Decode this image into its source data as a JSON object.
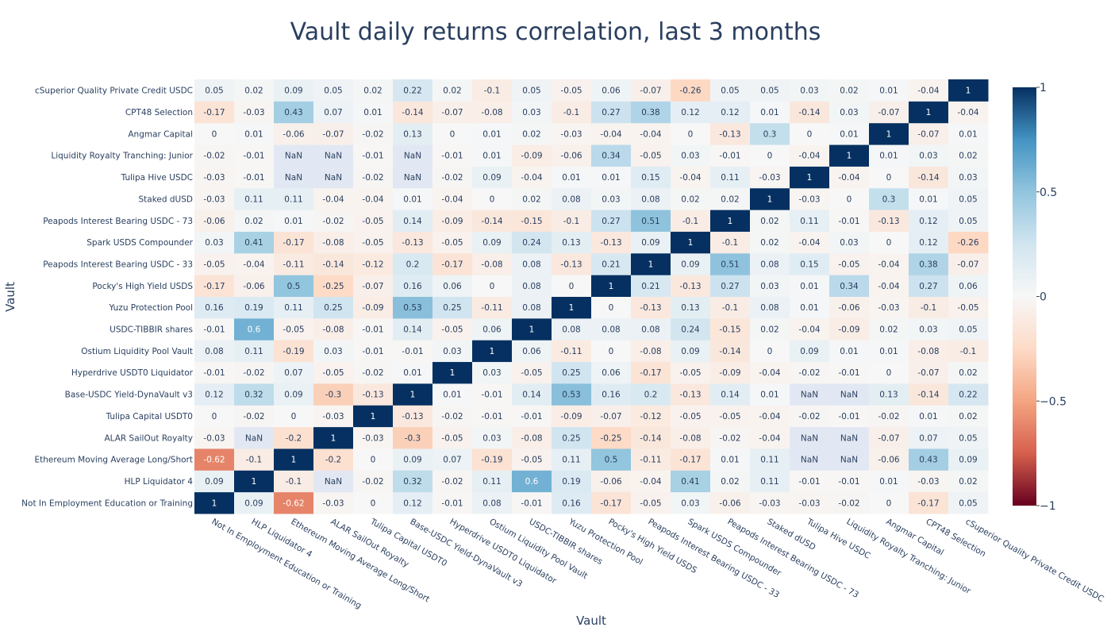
{
  "chart_data": {
    "type": "heatmap",
    "title": "Vault daily returns correlation, last 3 months",
    "xlabel": "Vault",
    "ylabel": "Vault",
    "categories": [
      "Not In Employment Education or Training",
      "HLP Liquidator 4",
      "Ethereum Moving Average Long/Short",
      "ALAR SailOut Royalty",
      "Tulipa Capital USDT0",
      "Base-USDC Yield-DynaVault v3",
      "Hyperdrive USDT0 Liquidator",
      "Ostium Liquidity Pool Vault",
      "USDC-TIBBIR shares",
      "Yuzu Protection Pool",
      "Pocky's High Yield USDS",
      "Peapods Interest Bearing USDC - 33",
      "Spark USDS Compounder",
      "Peapods Interest Bearing USDC - 73",
      "Staked dUSD",
      "Tulipa Hive USDC",
      "Liquidity Royalty Tranching: Junior",
      "Angmar Capital",
      "CPT48 Selection",
      "cSuperior Quality Private Credit USDC"
    ],
    "z": [
      [
        1,
        0.09,
        -0.62,
        -0.03,
        0,
        0.12,
        -0.01,
        0.08,
        -0.01,
        0.16,
        -0.17,
        -0.05,
        0.03,
        -0.06,
        -0.03,
        -0.03,
        -0.02,
        0,
        -0.17,
        0.05
      ],
      [
        0.09,
        1,
        -0.1,
        "NaN",
        -0.02,
        0.32,
        -0.02,
        0.11,
        0.6,
        0.19,
        -0.06,
        -0.04,
        0.41,
        0.02,
        0.11,
        -0.01,
        -0.01,
        0.01,
        -0.03,
        0.02
      ],
      [
        -0.62,
        -0.1,
        1,
        -0.2,
        0,
        0.09,
        0.07,
        -0.19,
        -0.05,
        0.11,
        0.5,
        -0.11,
        -0.17,
        0.01,
        0.11,
        "NaN",
        "NaN",
        -0.06,
        0.43,
        0.09
      ],
      [
        -0.03,
        "NaN",
        -0.2,
        1,
        -0.03,
        -0.3,
        -0.05,
        0.03,
        -0.08,
        0.25,
        -0.25,
        -0.14,
        -0.08,
        -0.02,
        -0.04,
        "NaN",
        "NaN",
        -0.07,
        0.07,
        0.05
      ],
      [
        0,
        -0.02,
        0,
        -0.03,
        1,
        -0.13,
        -0.02,
        -0.01,
        -0.01,
        -0.09,
        -0.07,
        -0.12,
        -0.05,
        -0.05,
        -0.04,
        -0.02,
        -0.01,
        -0.02,
        0.01,
        0.02
      ],
      [
        0.12,
        0.32,
        0.09,
        -0.3,
        -0.13,
        1,
        0.01,
        -0.01,
        0.14,
        0.53,
        0.16,
        0.2,
        -0.13,
        0.14,
        0.01,
        "NaN",
        "NaN",
        0.13,
        -0.14,
        0.22
      ],
      [
        -0.01,
        -0.02,
        0.07,
        -0.05,
        -0.02,
        0.01,
        1,
        0.03,
        -0.05,
        0.25,
        0.06,
        -0.17,
        -0.05,
        -0.09,
        -0.04,
        -0.02,
        -0.01,
        0,
        -0.07,
        0.02
      ],
      [
        0.08,
        0.11,
        -0.19,
        0.03,
        -0.01,
        -0.01,
        0.03,
        1,
        0.06,
        -0.11,
        0,
        -0.08,
        0.09,
        -0.14,
        0,
        0.09,
        0.01,
        0.01,
        -0.08,
        -0.1
      ],
      [
        -0.01,
        0.6,
        -0.05,
        -0.08,
        -0.01,
        0.14,
        -0.05,
        0.06,
        1,
        0.08,
        0.08,
        0.08,
        0.24,
        -0.15,
        0.02,
        -0.04,
        -0.09,
        0.02,
        0.03,
        0.05
      ],
      [
        0.16,
        0.19,
        0.11,
        0.25,
        -0.09,
        0.53,
        0.25,
        -0.11,
        0.08,
        1,
        0,
        -0.13,
        0.13,
        -0.1,
        0.08,
        0.01,
        -0.06,
        -0.03,
        -0.1,
        -0.05
      ],
      [
        -0.17,
        -0.06,
        0.5,
        -0.25,
        -0.07,
        0.16,
        0.06,
        0,
        0.08,
        0,
        1,
        0.21,
        -0.13,
        0.27,
        0.03,
        0.01,
        0.34,
        -0.04,
        0.27,
        0.06
      ],
      [
        -0.05,
        -0.04,
        -0.11,
        -0.14,
        -0.12,
        0.2,
        -0.17,
        -0.08,
        0.08,
        -0.13,
        0.21,
        1,
        0.09,
        0.51,
        0.08,
        0.15,
        -0.05,
        -0.04,
        0.38,
        -0.07
      ],
      [
        0.03,
        0.41,
        -0.17,
        -0.08,
        -0.05,
        -0.13,
        -0.05,
        0.09,
        0.24,
        0.13,
        -0.13,
        0.09,
        1,
        -0.1,
        0.02,
        -0.04,
        0.03,
        0,
        0.12,
        -0.26
      ],
      [
        -0.06,
        0.02,
        0.01,
        -0.02,
        -0.05,
        0.14,
        -0.09,
        -0.14,
        -0.15,
        -0.1,
        0.27,
        0.51,
        -0.1,
        1,
        0.02,
        0.11,
        -0.01,
        -0.13,
        0.12,
        0.05
      ],
      [
        -0.03,
        0.11,
        0.11,
        -0.04,
        -0.04,
        0.01,
        -0.04,
        0,
        0.02,
        0.08,
        0.03,
        0.08,
        0.02,
        0.02,
        1,
        -0.03,
        0,
        0.3,
        0.01,
        0.05
      ],
      [
        -0.03,
        -0.01,
        "NaN",
        "NaN",
        -0.02,
        "NaN",
        -0.02,
        0.09,
        -0.04,
        0.01,
        0.01,
        0.15,
        -0.04,
        0.11,
        -0.03,
        1,
        -0.04,
        0,
        -0.14,
        0.03
      ],
      [
        -0.02,
        -0.01,
        "NaN",
        "NaN",
        -0.01,
        "NaN",
        -0.01,
        0.01,
        -0.09,
        -0.06,
        0.34,
        -0.05,
        0.03,
        -0.01,
        0,
        -0.04,
        1,
        0.01,
        0.03,
        0.02
      ],
      [
        0,
        0.01,
        -0.06,
        -0.07,
        -0.02,
        0.13,
        0,
        0.01,
        0.02,
        -0.03,
        -0.04,
        -0.04,
        0,
        -0.13,
        0.3,
        0,
        0.01,
        1,
        -0.07,
        0.01
      ],
      [
        -0.17,
        -0.03,
        0.43,
        0.07,
        0.01,
        -0.14,
        -0.07,
        -0.08,
        0.03,
        -0.1,
        0.27,
        0.38,
        0.12,
        0.12,
        0.01,
        -0.14,
        0.03,
        -0.07,
        1,
        -0.04
      ],
      [
        0.05,
        0.02,
        0.09,
        0.05,
        0.02,
        0.22,
        0.02,
        -0.1,
        0.05,
        -0.05,
        0.06,
        -0.07,
        -0.26,
        0.05,
        0.05,
        0.03,
        0.02,
        0.01,
        -0.04,
        1
      ]
    ],
    "zrange": [
      -1,
      1
    ],
    "colorbar_ticks": [
      {
        "value": 1,
        "label": "1"
      },
      {
        "value": 0.5,
        "label": "0.5"
      },
      {
        "value": 0,
        "label": "0"
      },
      {
        "value": -0.5,
        "label": "−0.5"
      },
      {
        "value": -1,
        "label": "−1"
      }
    ],
    "colorscale": "RdBu",
    "colorscale_stops": [
      "#67001f",
      "#d6604d",
      "#f4a582",
      "#fddbc7",
      "#f7f7f7",
      "#d1e5f0",
      "#92c5de",
      "#4393c3",
      "#053061"
    ],
    "nan_color": "#e2e8f3",
    "legend": "colorbar-right",
    "grid": false
  }
}
